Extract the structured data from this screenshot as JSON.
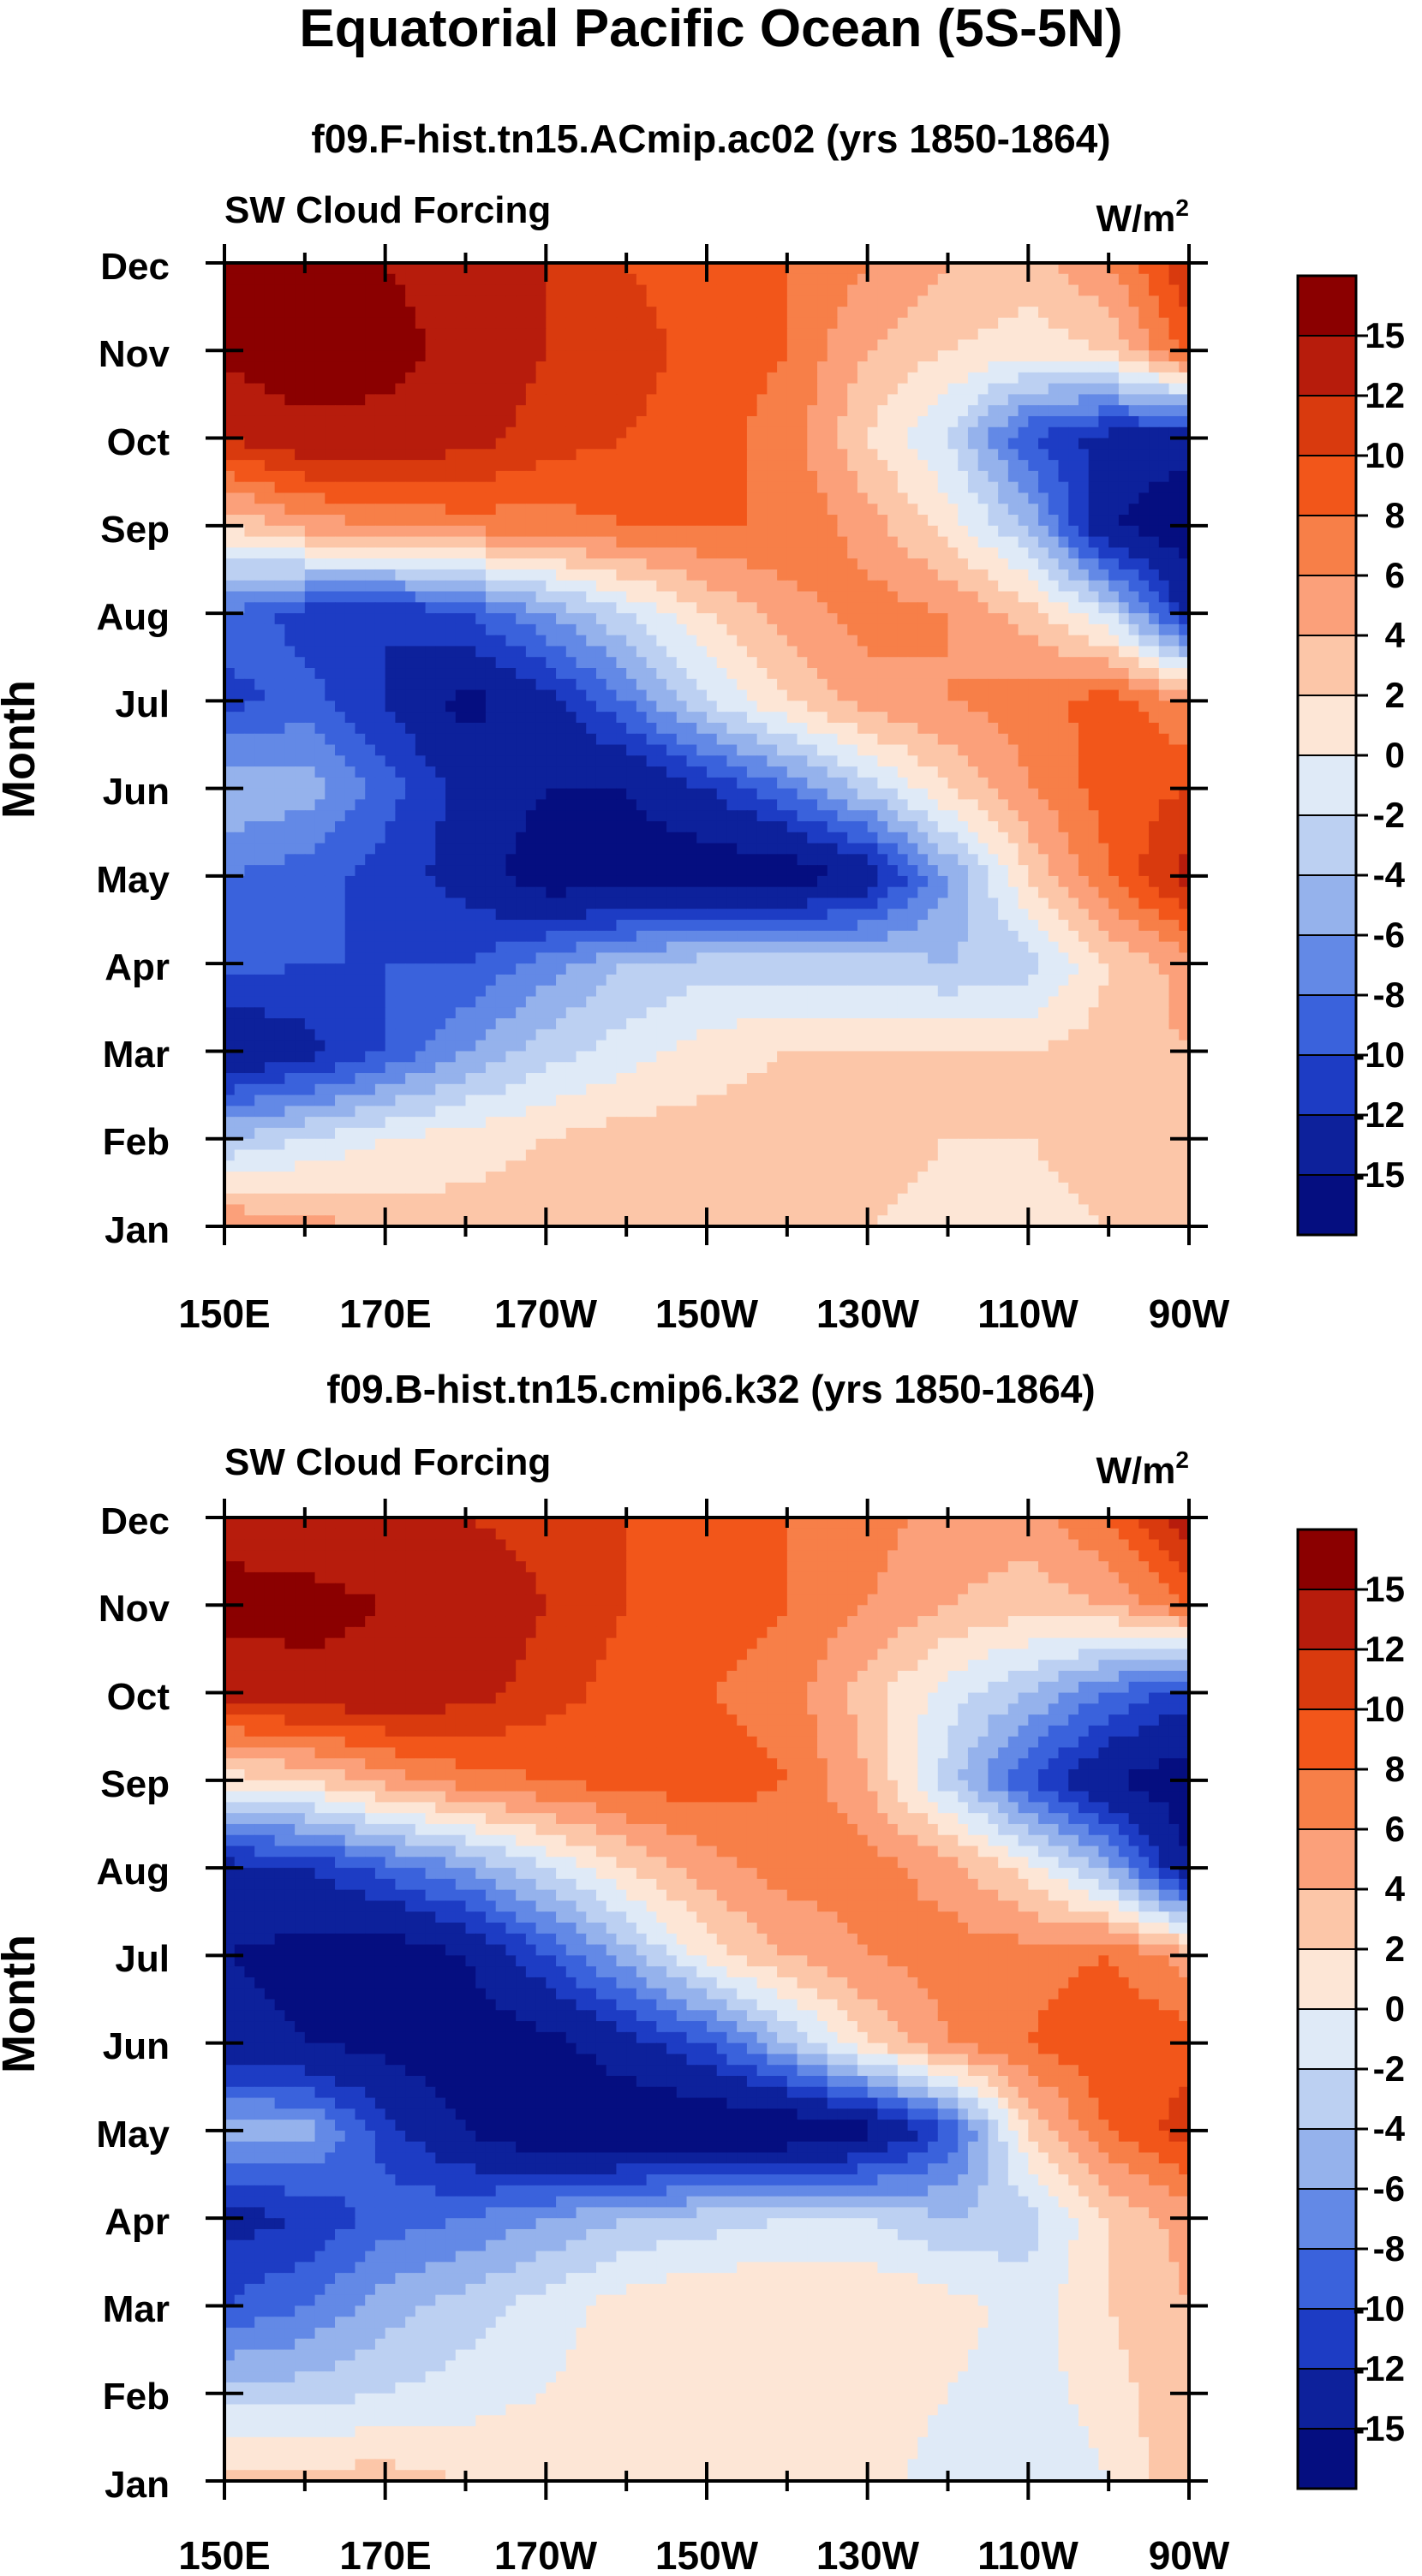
{
  "figure": {
    "title": "Equatorial Pacific Ocean (5S-5N)"
  },
  "colorbar": {
    "labels": [
      "15",
      "12",
      "10",
      "8",
      "6",
      "4",
      "2",
      "0",
      "-2",
      "-4",
      "-6",
      "-8",
      "-10",
      "-12",
      "-15"
    ],
    "colors_top_to_bottom": [
      "#8b0000",
      "#b71c0c",
      "#d93a0e",
      "#f2561a",
      "#f77f48",
      "#fba07a",
      "#fcc6a8",
      "#fde6d6",
      "#dfeaf7",
      "#bcd0f2",
      "#95b2ec",
      "#6389e6",
      "#3a62dc",
      "#1d3cc4",
      "#0d219b",
      "#050e80"
    ]
  },
  "chart_data": [
    {
      "type": "heatmap",
      "title": "f09.F-hist.tn15.ACmip.ac02 (yrs 1850-1864)",
      "left_label": "SW Cloud Forcing",
      "units": "W/m",
      "units_sup": "2",
      "ylabel": "Month",
      "xlabel": "",
      "x_ticks": [
        "150E",
        "170E",
        "170W",
        "150W",
        "130W",
        "110W",
        "90W"
      ],
      "y_ticks": [
        "Jan",
        "Feb",
        "Mar",
        "Apr",
        "May",
        "Jun",
        "Jul",
        "Aug",
        "Sep",
        "Oct",
        "Nov",
        "Dec"
      ],
      "levels": [
        -15,
        -12,
        -10,
        -8,
        -6,
        -4,
        -2,
        0,
        2,
        4,
        6,
        8,
        10,
        12,
        15
      ],
      "x_range": [
        150,
        270
      ],
      "rows": [
        {
          "month": "Jan",
          "values": [
            6,
            5,
            3,
            3,
            3,
            3,
            4,
            2,
            2,
            1,
            1,
            2,
            2
          ]
        },
        {
          "month": "Feb",
          "values": [
            -4,
            -2,
            0,
            1,
            2,
            3,
            3,
            3,
            3,
            2,
            2,
            3,
            3
          ]
        },
        {
          "month": "Mar",
          "values": [
            -15,
            -13,
            -10,
            -6,
            -3,
            -1,
            1,
            2,
            2,
            2,
            2,
            3,
            4
          ]
        },
        {
          "month": "Apr",
          "values": [
            -9,
            -10,
            -10,
            -10,
            -7,
            -4,
            -3,
            -3,
            -3,
            -4,
            -3,
            2,
            5
          ]
        },
        {
          "month": "May",
          "values": [
            -8,
            -9,
            -11,
            -13,
            -17,
            -17,
            -17,
            -17,
            -14,
            -6,
            2,
            8,
            13
          ]
        },
        {
          "month": "Jun",
          "values": [
            -4,
            -5,
            -9,
            -13,
            -15,
            -15,
            -12,
            -8,
            -3,
            2,
            6,
            9,
            10
          ]
        },
        {
          "month": "Jul",
          "values": [
            -11,
            -9,
            -12,
            -16,
            -13,
            -8,
            -2,
            2,
            5,
            6,
            7,
            9,
            6
          ]
        },
        {
          "month": "Aug",
          "values": [
            -8,
            -11,
            -12,
            -10,
            -6,
            -2,
            2,
            5,
            7,
            6,
            3,
            -2,
            -13
          ]
        },
        {
          "month": "Sep",
          "values": [
            2,
            5,
            6,
            7,
            7,
            8,
            8,
            8,
            5,
            1,
            -4,
            -15,
            -17
          ]
        },
        {
          "month": "Oct",
          "values": [
            12,
            14,
            14,
            13,
            11,
            10,
            9,
            7,
            2,
            -2,
            -10,
            -13,
            -14
          ]
        },
        {
          "month": "Nov",
          "values": [
            16,
            17,
            16,
            14,
            12,
            11,
            9,
            8,
            4,
            2,
            1,
            2,
            9
          ]
        },
        {
          "month": "Dec",
          "values": [
            16,
            16,
            15,
            14,
            12,
            10,
            9,
            8,
            6,
            4,
            3,
            6,
            12
          ]
        }
      ]
    },
    {
      "type": "heatmap",
      "title": "f09.B-hist.tn15.cmip6.k32 (yrs 1850-1864)",
      "left_label": "SW Cloud Forcing",
      "units": "W/m",
      "units_sup": "2",
      "ylabel": "Month",
      "xlabel": "",
      "x_ticks": [
        "150E",
        "170E",
        "170W",
        "150W",
        "130W",
        "110W",
        "90W"
      ],
      "y_ticks": [
        "Jan",
        "Feb",
        "Mar",
        "Apr",
        "May",
        "Jun",
        "Jul",
        "Aug",
        "Sep",
        "Oct",
        "Nov",
        "Dec"
      ],
      "levels": [
        -15,
        -12,
        -10,
        -8,
        -6,
        -4,
        -2,
        0,
        2,
        4,
        6,
        8,
        10,
        12,
        15
      ],
      "x_range": [
        150,
        270
      ],
      "rows": [
        {
          "month": "Jan",
          "values": [
            3,
            3,
            3,
            2,
            2,
            2,
            2,
            2,
            1,
            -1,
            -2,
            0,
            4
          ]
        },
        {
          "month": "Feb",
          "values": [
            -3,
            -3,
            -2,
            -1,
            0,
            1,
            2,
            1,
            1,
            0,
            -1,
            1,
            4
          ]
        },
        {
          "month": "Mar",
          "values": [
            -10,
            -8,
            -5,
            -3,
            -1,
            1,
            2,
            2,
            2,
            1,
            -1,
            2,
            4
          ]
        },
        {
          "month": "Apr",
          "values": [
            -13,
            -12,
            -9,
            -8,
            -6,
            -4,
            -3,
            -2,
            -2,
            -4,
            -3,
            2,
            5
          ]
        },
        {
          "month": "May",
          "values": [
            -5,
            -5,
            -11,
            -15,
            -18,
            -18,
            -18,
            -18,
            -16,
            -10,
            2,
            8,
            11
          ]
        },
        {
          "month": "Jun",
          "values": [
            -14,
            -15,
            -16,
            -17,
            -16,
            -13,
            -10,
            -4,
            2,
            6,
            8,
            10,
            9
          ]
        },
        {
          "month": "Jul",
          "values": [
            -15,
            -16,
            -17,
            -15,
            -10,
            -5,
            1,
            4,
            6,
            7,
            7,
            8,
            5
          ]
        },
        {
          "month": "Aug",
          "values": [
            -13,
            -12,
            -9,
            -6,
            -2,
            2,
            5,
            7,
            7,
            5,
            1,
            -5,
            -15
          ]
        },
        {
          "month": "Sep",
          "values": [
            1,
            2,
            5,
            7,
            8,
            9,
            9,
            8,
            4,
            -3,
            -10,
            -15,
            -17
          ]
        },
        {
          "month": "Oct",
          "values": [
            13,
            14,
            14,
            13,
            11,
            9,
            8,
            7,
            3,
            -1,
            -4,
            -8,
            -11
          ]
        },
        {
          "month": "Nov",
          "values": [
            16,
            16,
            15,
            14,
            12,
            10,
            9,
            8,
            6,
            4,
            3,
            4,
            8
          ]
        },
        {
          "month": "Dec",
          "values": [
            14,
            13,
            13,
            12,
            11,
            10,
            9,
            8,
            7,
            5,
            5,
            8,
            14
          ]
        }
      ]
    }
  ]
}
